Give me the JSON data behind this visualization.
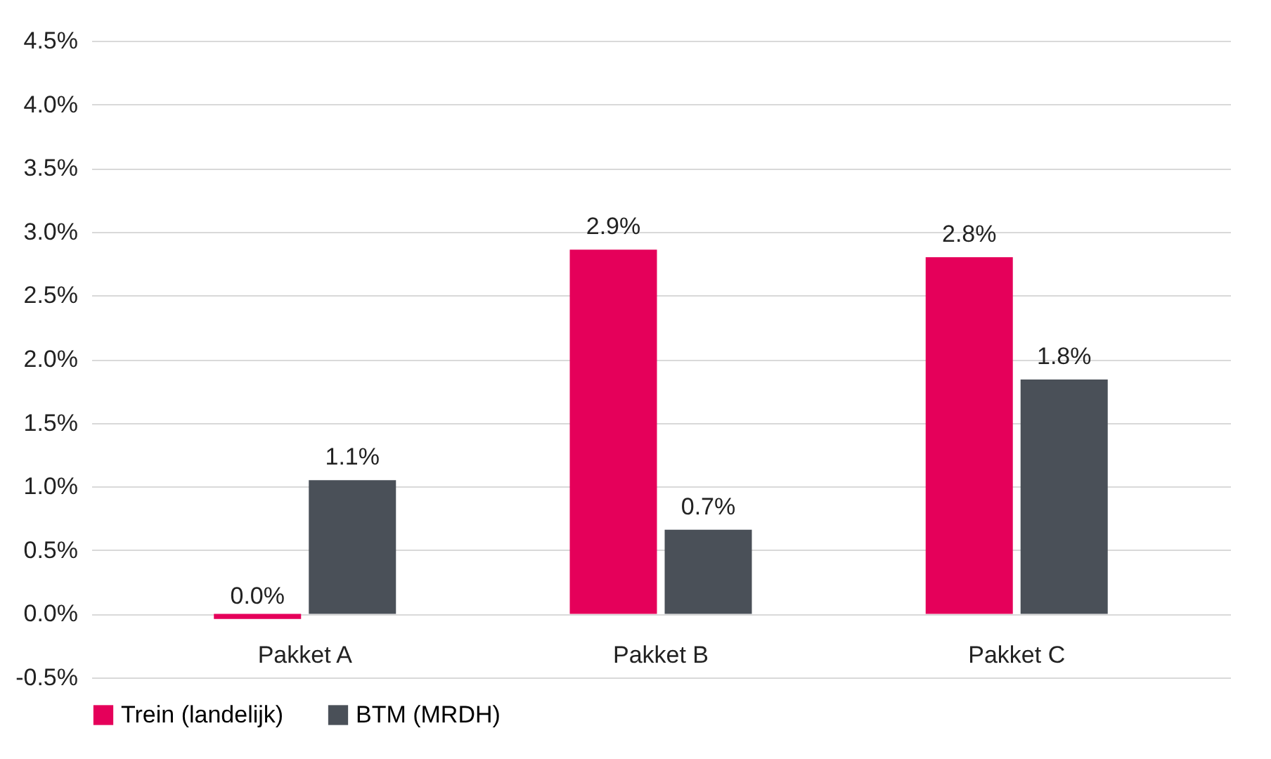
{
  "chart_data": {
    "type": "bar",
    "categories": [
      "Pakket A",
      "Pakket B",
      "Pakket C"
    ],
    "series": [
      {
        "name": "Trein (landelijk)",
        "color": "#e5005a",
        "values": [
          -0.04,
          2.86,
          2.8
        ],
        "value_labels": [
          "0.0%",
          "2.9%",
          "2.8%"
        ]
      },
      {
        "name": "BTM (MRDH)",
        "color": "#4a5058",
        "values": [
          1.05,
          0.66,
          1.84
        ],
        "value_labels": [
          "1.1%",
          "0.7%",
          "1.8%"
        ]
      }
    ],
    "ylim": [
      -0.5,
      4.5
    ],
    "yticks": [
      {
        "value": -0.5,
        "label": "-0.5%"
      },
      {
        "value": 0,
        "label": "0.0%"
      },
      {
        "value": 0.5,
        "label": "0.5%"
      },
      {
        "value": 1,
        "label": "1.0%"
      },
      {
        "value": 1.5,
        "label": "1.5%"
      },
      {
        "value": 2,
        "label": "2.0%"
      },
      {
        "value": 2.5,
        "label": "2.5%"
      },
      {
        "value": 3,
        "label": "3.0%"
      },
      {
        "value": 3.5,
        "label": "3.5%"
      },
      {
        "value": 4,
        "label": "4.0%"
      },
      {
        "value": 4.5,
        "label": "4.5%"
      }
    ],
    "grid": "y",
    "legend": "bottom"
  }
}
